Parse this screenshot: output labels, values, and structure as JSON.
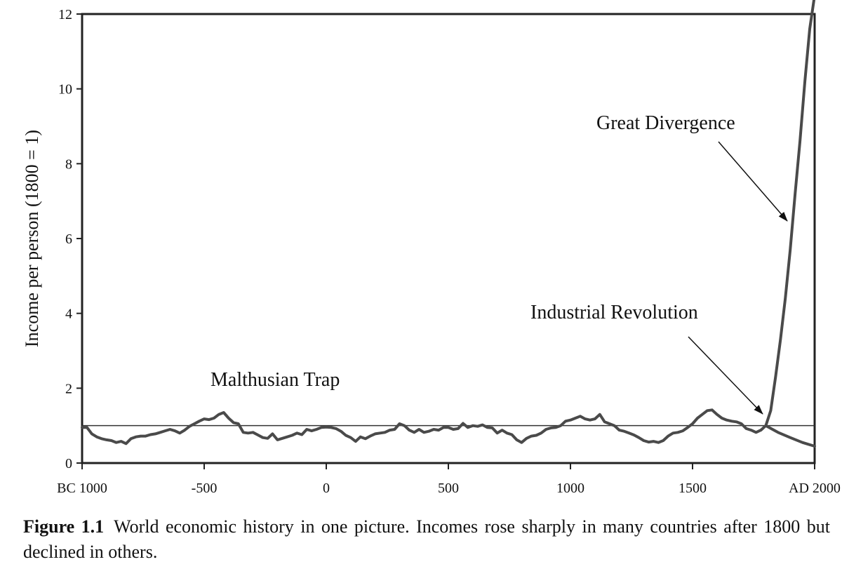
{
  "chart_data": {
    "type": "line",
    "title": "",
    "xlabel": "",
    "ylabel": "Income per person (1800 = 1)",
    "xlim": [
      -1000,
      2000
    ],
    "ylim": [
      0,
      12
    ],
    "yticks": [
      0,
      2,
      4,
      6,
      8,
      10,
      12
    ],
    "xtick_values": [
      -1000,
      -500,
      0,
      500,
      1000,
      1500,
      2000
    ],
    "xtick_labels": [
      "BC 1000",
      "-500",
      "0",
      "500",
      "1000",
      "1500",
      "AD 2000"
    ],
    "grid": false,
    "legend": "none",
    "reference_line": {
      "y": 1
    },
    "series": [
      {
        "x": [
          -1000,
          -980,
          -960,
          -940,
          -920,
          -900,
          -880,
          -860,
          -840,
          -820,
          -800,
          -780,
          -760,
          -740,
          -720,
          -700,
          -680,
          -660,
          -640,
          -620,
          -600,
          -580,
          -560,
          -540,
          -520,
          -500,
          -480,
          -460,
          -440,
          -420,
          -400,
          -380,
          -360,
          -340,
          -320,
          -300,
          -280,
          -260,
          -240,
          -220,
          -200,
          -180,
          -160,
          -140,
          -120,
          -100,
          -80,
          -60,
          -40,
          -20,
          0,
          20,
          40,
          60,
          80,
          100,
          120,
          140,
          160,
          180,
          200,
          220,
          240,
          260,
          280,
          300,
          320,
          340,
          360,
          380,
          400,
          420,
          440,
          460,
          480,
          500,
          520,
          540,
          560,
          580,
          600,
          620,
          640,
          660,
          680,
          700,
          720,
          740,
          760,
          780,
          800,
          820,
          840,
          860,
          880,
          900,
          920,
          940,
          960,
          980,
          1000,
          1020,
          1040,
          1060,
          1080,
          1100,
          1120,
          1140,
          1160,
          1180,
          1200,
          1220,
          1240,
          1260,
          1280,
          1300,
          1320,
          1340,
          1360,
          1380,
          1400,
          1420,
          1440,
          1460,
          1480,
          1500,
          1520,
          1540,
          1560,
          1580,
          1600,
          1620,
          1640,
          1660,
          1680,
          1700,
          1720,
          1740,
          1760,
          1780,
          1800
        ],
        "y": [
          0.95,
          0.95,
          0.78,
          0.7,
          0.65,
          0.62,
          0.6,
          0.55,
          0.58,
          0.52,
          0.65,
          0.7,
          0.72,
          0.72,
          0.76,
          0.78,
          0.82,
          0.86,
          0.9,
          0.86,
          0.8,
          0.88,
          0.98,
          1.05,
          1.12,
          1.18,
          1.16,
          1.2,
          1.3,
          1.35,
          1.2,
          1.08,
          1.05,
          0.82,
          0.8,
          0.82,
          0.75,
          0.68,
          0.66,
          0.78,
          0.62,
          0.66,
          0.7,
          0.74,
          0.8,
          0.76,
          0.9,
          0.86,
          0.9,
          0.95,
          0.96,
          0.95,
          0.92,
          0.85,
          0.74,
          0.68,
          0.58,
          0.7,
          0.65,
          0.72,
          0.78,
          0.8,
          0.82,
          0.88,
          0.9,
          1.05,
          1.0,
          0.88,
          0.82,
          0.9,
          0.82,
          0.85,
          0.9,
          0.88,
          0.95,
          0.95,
          0.9,
          0.92,
          1.06,
          0.95,
          1.0,
          0.98,
          1.02,
          0.95,
          0.94,
          0.8,
          0.88,
          0.8,
          0.76,
          0.62,
          0.55,
          0.66,
          0.72,
          0.74,
          0.8,
          0.9,
          0.94,
          0.95,
          1.0,
          1.12,
          1.15,
          1.2,
          1.25,
          1.18,
          1.15,
          1.18,
          1.3,
          1.1,
          1.05,
          1.0,
          0.88,
          0.85,
          0.8,
          0.75,
          0.68,
          0.6,
          0.56,
          0.58,
          0.55,
          0.6,
          0.72,
          0.8,
          0.82,
          0.86,
          0.95,
          1.05,
          1.2,
          1.3,
          1.4,
          1.42,
          1.3,
          1.2,
          1.15,
          1.12,
          1.1,
          1.05,
          0.92,
          0.88,
          0.82,
          0.88,
          1.0
        ]
      },
      {
        "x": [
          1800,
          1820,
          1840,
          1860,
          1880,
          1900,
          1920,
          1940,
          1960,
          1980,
          2000
        ],
        "y": [
          1.0,
          1.4,
          2.3,
          3.3,
          4.4,
          5.7,
          7.2,
          8.6,
          10.2,
          11.6,
          12.5
        ]
      },
      {
        "x": [
          1800,
          1850,
          1900,
          1950,
          2000
        ],
        "y": [
          1.0,
          0.82,
          0.68,
          0.55,
          0.45
        ]
      }
    ],
    "annotations": [
      {
        "text": "Malthusian Trap"
      },
      {
        "text": "Industrial Revolution"
      },
      {
        "text": "Great Divergence"
      }
    ]
  },
  "caption": {
    "label": "Figure 1.1",
    "text": "World economic history in one picture. Incomes rose sharply in many countries after 1800 but declined in others."
  }
}
